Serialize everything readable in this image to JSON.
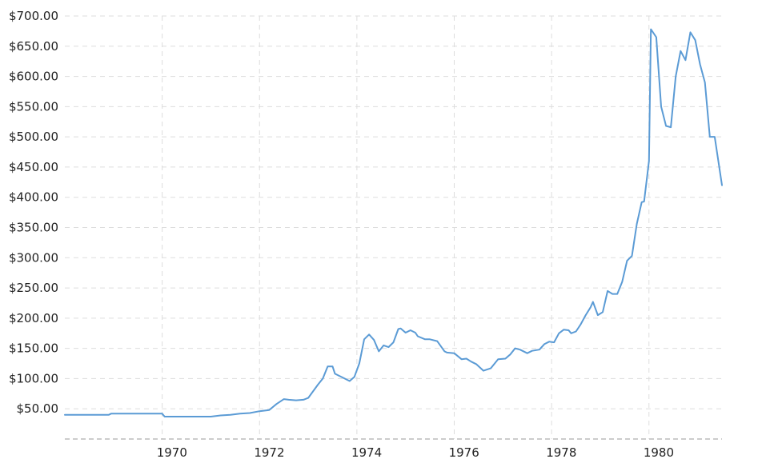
{
  "chart_data": {
    "type": "line",
    "title": "",
    "xlabel": "",
    "ylabel": "",
    "grid": true,
    "legend": "none",
    "line_color": "#5b9bd5",
    "grid_color": "#dddddd",
    "xlim": [
      1967.8,
      1981.3
    ],
    "ylim": [
      0,
      700
    ],
    "y_ticks": [
      50,
      100,
      150,
      200,
      250,
      300,
      350,
      400,
      450,
      500,
      550,
      600,
      650,
      700
    ],
    "y_tick_labels": [
      "$50.00",
      "$100.00",
      "$150.00",
      "$200.00",
      "$250.00",
      "$300.00",
      "$350.00",
      "$400.00",
      "$450.00",
      "$500.00",
      "$550.00",
      "$600.00",
      "$650.00",
      "$700.00"
    ],
    "x_ticks": [
      1970,
      1972,
      1974,
      1976,
      1978,
      1980
    ],
    "x_tick_labels": [
      "1970",
      "1972",
      "1974",
      "1976",
      "1978",
      "1980"
    ],
    "x_grid": [
      1969.8,
      1971.8,
      1973.8,
      1975.8,
      1977.8,
      1979.8
    ],
    "series": [
      {
        "x": [
          1967.8,
          1968.7,
          1968.75,
          1969.8,
          1969.85,
          1970.8,
          1971.0,
          1971.2,
          1971.4,
          1971.6,
          1971.8,
          1972.0,
          1972.15,
          1972.3,
          1972.4,
          1972.55,
          1972.7,
          1972.8,
          1973.0,
          1973.1,
          1973.2,
          1973.3,
          1973.35,
          1973.5,
          1973.65,
          1973.75,
          1973.85,
          1973.95,
          1974.05,
          1974.15,
          1974.25,
          1974.35,
          1974.45,
          1974.55,
          1974.65,
          1974.7,
          1974.8,
          1974.9,
          1975.0,
          1975.05,
          1975.2,
          1975.3,
          1975.45,
          1975.6,
          1975.65,
          1975.8,
          1975.95,
          1976.05,
          1976.15,
          1976.25,
          1976.4,
          1976.55,
          1976.7,
          1976.85,
          1976.95,
          1977.05,
          1977.15,
          1977.3,
          1977.4,
          1977.55,
          1977.65,
          1977.75,
          1977.85,
          1977.95,
          1978.05,
          1978.15,
          1978.2,
          1978.3,
          1978.4,
          1978.5,
          1978.6,
          1978.65,
          1978.75,
          1978.85,
          1978.95,
          1979.05,
          1979.15,
          1979.25,
          1979.35,
          1979.45,
          1979.55,
          1979.65,
          1979.7,
          1979.8,
          1979.84,
          1979.95,
          1980.05,
          1980.15,
          1980.25,
          1980.35,
          1980.45,
          1980.55,
          1980.65,
          1980.75,
          1980.85,
          1980.95,
          1981.05,
          1981.15,
          1981.3
        ],
        "values": [
          40,
          40,
          42,
          42,
          37,
          37,
          39,
          40,
          42,
          43,
          46,
          48,
          58,
          66,
          65,
          64,
          65,
          68,
          90,
          100,
          120,
          120,
          108,
          102,
          96,
          103,
          125,
          165,
          173,
          164,
          145,
          155,
          152,
          160,
          182,
          183,
          176,
          180,
          176,
          170,
          165,
          165,
          162,
          145,
          143,
          142,
          132,
          133,
          128,
          124,
          113,
          117,
          132,
          133,
          140,
          150,
          148,
          142,
          146,
          148,
          157,
          161,
          160,
          175,
          181,
          180,
          175,
          178,
          190,
          205,
          218,
          227,
          205,
          210,
          245,
          240,
          240,
          260,
          295,
          303,
          356,
          392,
          393,
          460,
          678,
          665,
          550,
          518,
          516,
          600,
          642,
          627,
          673,
          660,
          620,
          590,
          500,
          500,
          420
        ]
      }
    ]
  }
}
